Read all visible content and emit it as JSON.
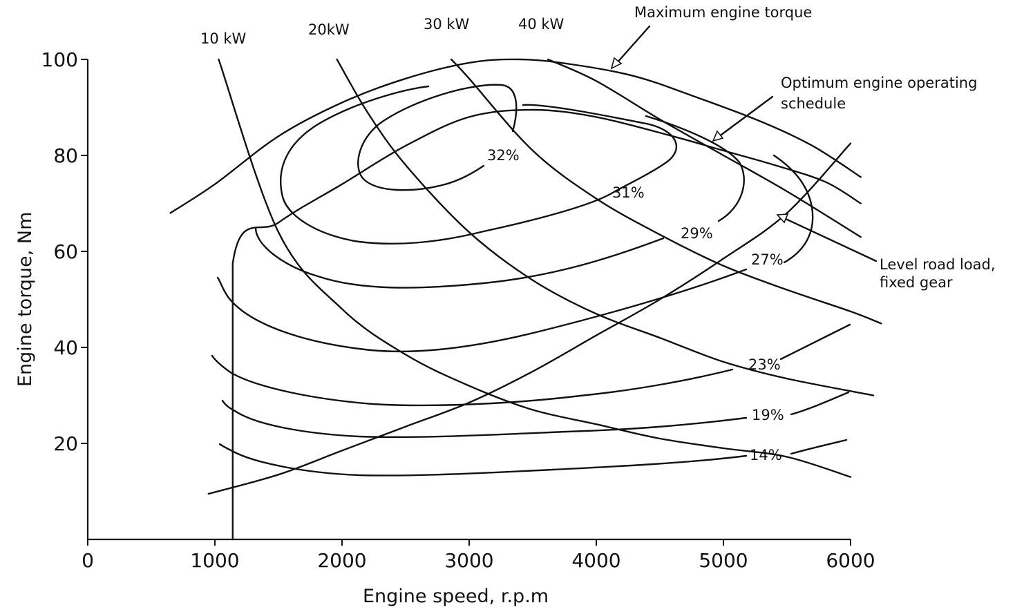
{
  "chart_data": {
    "type": "line",
    "xlabel": "Engine speed, r.p.m",
    "ylabel": "Engine torque, Nm",
    "xlim": [
      0,
      6000
    ],
    "ylim": [
      0,
      100
    ],
    "xticks": [
      "0",
      "1000",
      "2000",
      "3000",
      "4000",
      "5000",
      "6000"
    ],
    "yticks": [
      "20",
      "40",
      "60",
      "80",
      "100"
    ],
    "grid": false,
    "series": [
      {
        "name": "Maximum engine torque",
        "x": [
          650,
          1000,
          1500,
          2000,
          2500,
          3000,
          3400,
          3800,
          4300,
          4800,
          5300,
          5700,
          6080
        ],
        "y": [
          68,
          74,
          84,
          91,
          96,
          99.3,
          100,
          99,
          96.5,
          92,
          87,
          82,
          75.5
        ]
      },
      {
        "name": "Optimum engine operating schedule",
        "x": [
          1140,
          1140,
          1500,
          2000,
          2500,
          3000,
          3500,
          4000,
          4600,
          5000,
          5400,
          5800,
          6080
        ],
        "y": [
          0,
          57.5,
          66,
          74,
          82,
          88,
          89.5,
          88,
          84,
          81,
          78,
          74.5,
          70
        ]
      },
      {
        "name": "Level road load, fixed gear",
        "x": [
          950,
          1500,
          2000,
          2500,
          3000,
          3500,
          4000,
          4500,
          5000,
          5500,
          6000
        ],
        "y": [
          9.5,
          13.5,
          18.5,
          23.5,
          28.5,
          35,
          42.5,
          50,
          58.5,
          68,
          82.5
        ]
      },
      {
        "name": "10 kW",
        "x": [
          1030,
          1500,
          2000,
          2500,
          3000,
          3500,
          4000,
          4500,
          5000,
          5500,
          6000
        ],
        "y": [
          100,
          64,
          48,
          38.5,
          32,
          27,
          24,
          21,
          19,
          17.2,
          13
        ]
      },
      {
        "name": "20 kW",
        "x": [
          1960,
          2200,
          2500,
          3000,
          3500,
          4000,
          4500,
          5000,
          5500,
          6180
        ],
        "y": [
          100,
          89,
          78,
          64,
          54,
          47,
          42,
          37,
          33.5,
          30
        ]
      },
      {
        "name": "30 kW",
        "x": [
          2860,
          3000,
          3500,
          4000,
          4500,
          5000,
          5500,
          6000,
          6240
        ],
        "y": [
          100,
          96,
          81,
          71,
          63.5,
          57,
          52,
          47.5,
          45
        ]
      },
      {
        "name": "40 kW",
        "x": [
          3620,
          4000,
          4500,
          5000,
          5500,
          6080
        ],
        "y": [
          100,
          95.5,
          87.5,
          80,
          72.5,
          63
        ]
      }
    ],
    "efficiency_contours": [
      "32%",
      "31%",
      "29%",
      "27%",
      "23%",
      "19%",
      "14%"
    ],
    "annotations": [
      "Maximum engine torque",
      "Optimum engine operating schedule",
      "Level road load, fixed gear"
    ],
    "power_labels": [
      "10 kW",
      "20kW",
      "30 kW",
      "40 kW"
    ]
  },
  "labels": {
    "power_10": "10 kW",
    "power_20": "20kW",
    "power_30": "30 kW",
    "power_40": "40 kW",
    "max_torque_note": "Maximum engine torque",
    "optimum_note_line1": "Optimum engine operating",
    "optimum_note_line2": "schedule",
    "road_load_line1": "Level road load,",
    "road_load_line2": "fixed gear",
    "eff_32": "32%",
    "eff_31": "31%",
    "eff_29": "29%",
    "eff_27": "27%",
    "eff_23": "23%",
    "eff_19": "19%",
    "eff_14": "14%"
  }
}
